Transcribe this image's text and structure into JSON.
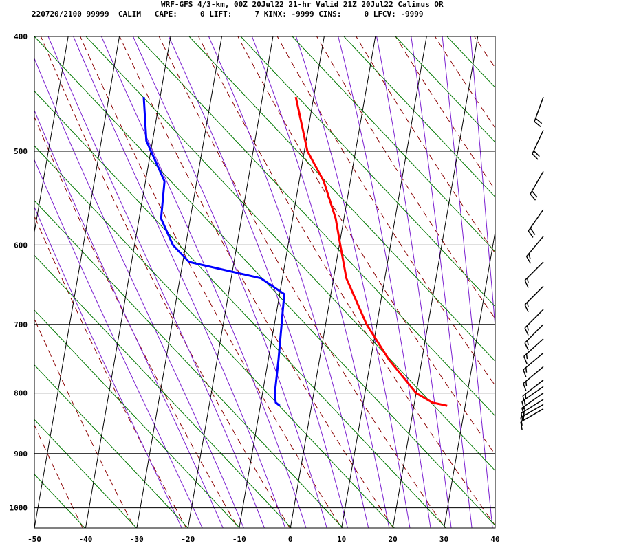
{
  "header": {
    "line1": "WRF-GFS 4/3-km, 00Z 20Jul22 21-hr Valid 21Z 20Jul22 Calimus OR",
    "line2": "220720/2100 99999  CALIM   CAPE:     0 LIFT:     7 KINX: -9999 CINS:     0 LFCV: -9999"
  },
  "chart_data": {
    "type": "line",
    "title": "",
    "xlabel": "",
    "ylabel": "",
    "x_axis": {
      "min": -50,
      "max": 40,
      "ticks": [
        -50,
        -40,
        -30,
        -20,
        -10,
        0,
        10,
        20,
        30,
        40
      ]
    },
    "y_axis": {
      "scale": "log",
      "min": 400,
      "max": 1040,
      "ticks": [
        400,
        500,
        600,
        700,
        800,
        900,
        1000
      ]
    },
    "skew_degC_per_log10_pressure": 40,
    "grid": true,
    "series": [
      {
        "color": "#ff0000",
        "points": [
          [
            450,
            -13.5
          ],
          [
            500,
            -9.4
          ],
          [
            530,
            -5.2
          ],
          [
            570,
            -1.6
          ],
          [
            600,
            0.2
          ],
          [
            640,
            2.5
          ],
          [
            700,
            8.0
          ],
          [
            750,
            13.6
          ],
          [
            780,
            17.5
          ],
          [
            800,
            20.0
          ],
          [
            815,
            23.5
          ],
          [
            818,
            25.3
          ],
          [
            820,
            26.5
          ]
        ]
      },
      {
        "color": "#0000ff",
        "points": [
          [
            450,
            -43.2
          ],
          [
            490,
            -41.2
          ],
          [
            530,
            -36.3
          ],
          [
            570,
            -35.7
          ],
          [
            600,
            -32.5
          ],
          [
            620,
            -28.8
          ],
          [
            640,
            -14.2
          ],
          [
            660,
            -9.1
          ],
          [
            700,
            -8.6
          ],
          [
            750,
            -8.0
          ],
          [
            800,
            -7.6
          ],
          [
            815,
            -7.1
          ],
          [
            820,
            -6.2
          ]
        ]
      }
    ],
    "background_lines": {
      "dry_adiabats_color": "#8b0000",
      "moist_adiabats_color": "#7b1fd0",
      "mixing_ratio_color": "#007800"
    },
    "wind_barbs": {
      "color": "#000000",
      "levels": [
        {
          "p": 450,
          "dir": 200,
          "spd": 20
        },
        {
          "p": 480,
          "dir": 205,
          "spd": 20
        },
        {
          "p": 520,
          "dir": 210,
          "spd": 20
        },
        {
          "p": 560,
          "dir": 215,
          "spd": 20
        },
        {
          "p": 590,
          "dir": 220,
          "spd": 15
        },
        {
          "p": 620,
          "dir": 225,
          "spd": 15
        },
        {
          "p": 650,
          "dir": 225,
          "spd": 15
        },
        {
          "p": 680,
          "dir": 225,
          "spd": 15
        },
        {
          "p": 700,
          "dir": 225,
          "spd": 15
        },
        {
          "p": 720,
          "dir": 228,
          "spd": 15
        },
        {
          "p": 740,
          "dir": 230,
          "spd": 15
        },
        {
          "p": 760,
          "dir": 230,
          "spd": 15
        },
        {
          "p": 780,
          "dir": 232,
          "spd": 15
        },
        {
          "p": 790,
          "dir": 235,
          "spd": 15
        },
        {
          "p": 800,
          "dir": 235,
          "spd": 15
        },
        {
          "p": 810,
          "dir": 238,
          "spd": 15
        },
        {
          "p": 818,
          "dir": 240,
          "spd": 15
        },
        {
          "p": 825,
          "dir": 240,
          "spd": 10
        }
      ]
    }
  }
}
